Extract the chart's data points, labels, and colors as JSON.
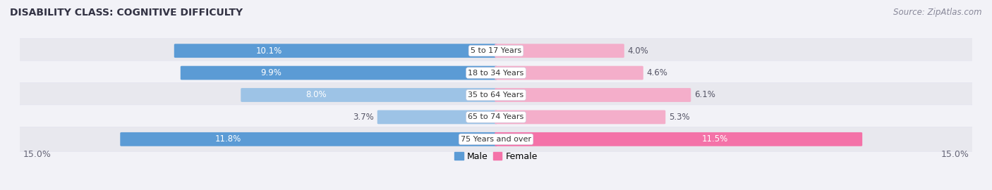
{
  "title": "DISABILITY CLASS: COGNITIVE DIFFICULTY",
  "source": "Source: ZipAtlas.com",
  "categories": [
    "5 to 17 Years",
    "18 to 34 Years",
    "35 to 64 Years",
    "65 to 74 Years",
    "75 Years and over"
  ],
  "male_values": [
    10.1,
    9.9,
    8.0,
    3.7,
    11.8
  ],
  "female_values": [
    4.0,
    4.6,
    6.1,
    5.3,
    11.5
  ],
  "male_color_dark": "#5b9bd5",
  "male_color_light": "#9dc3e6",
  "female_color_dark": "#f472a8",
  "female_color_light": "#f4aeca",
  "male_dark_rows": [
    0,
    1,
    4
  ],
  "female_dark_rows": [
    4
  ],
  "max_val": 15.0,
  "background_color": "#f2f2f7",
  "row_bg_even": "#e8e8ee",
  "row_bg_odd": "#f2f2f7",
  "title_fontsize": 10,
  "source_fontsize": 8.5,
  "label_fontsize": 8.5,
  "category_fontsize": 8,
  "axis_label_fontsize": 9,
  "legend_fontsize": 9
}
